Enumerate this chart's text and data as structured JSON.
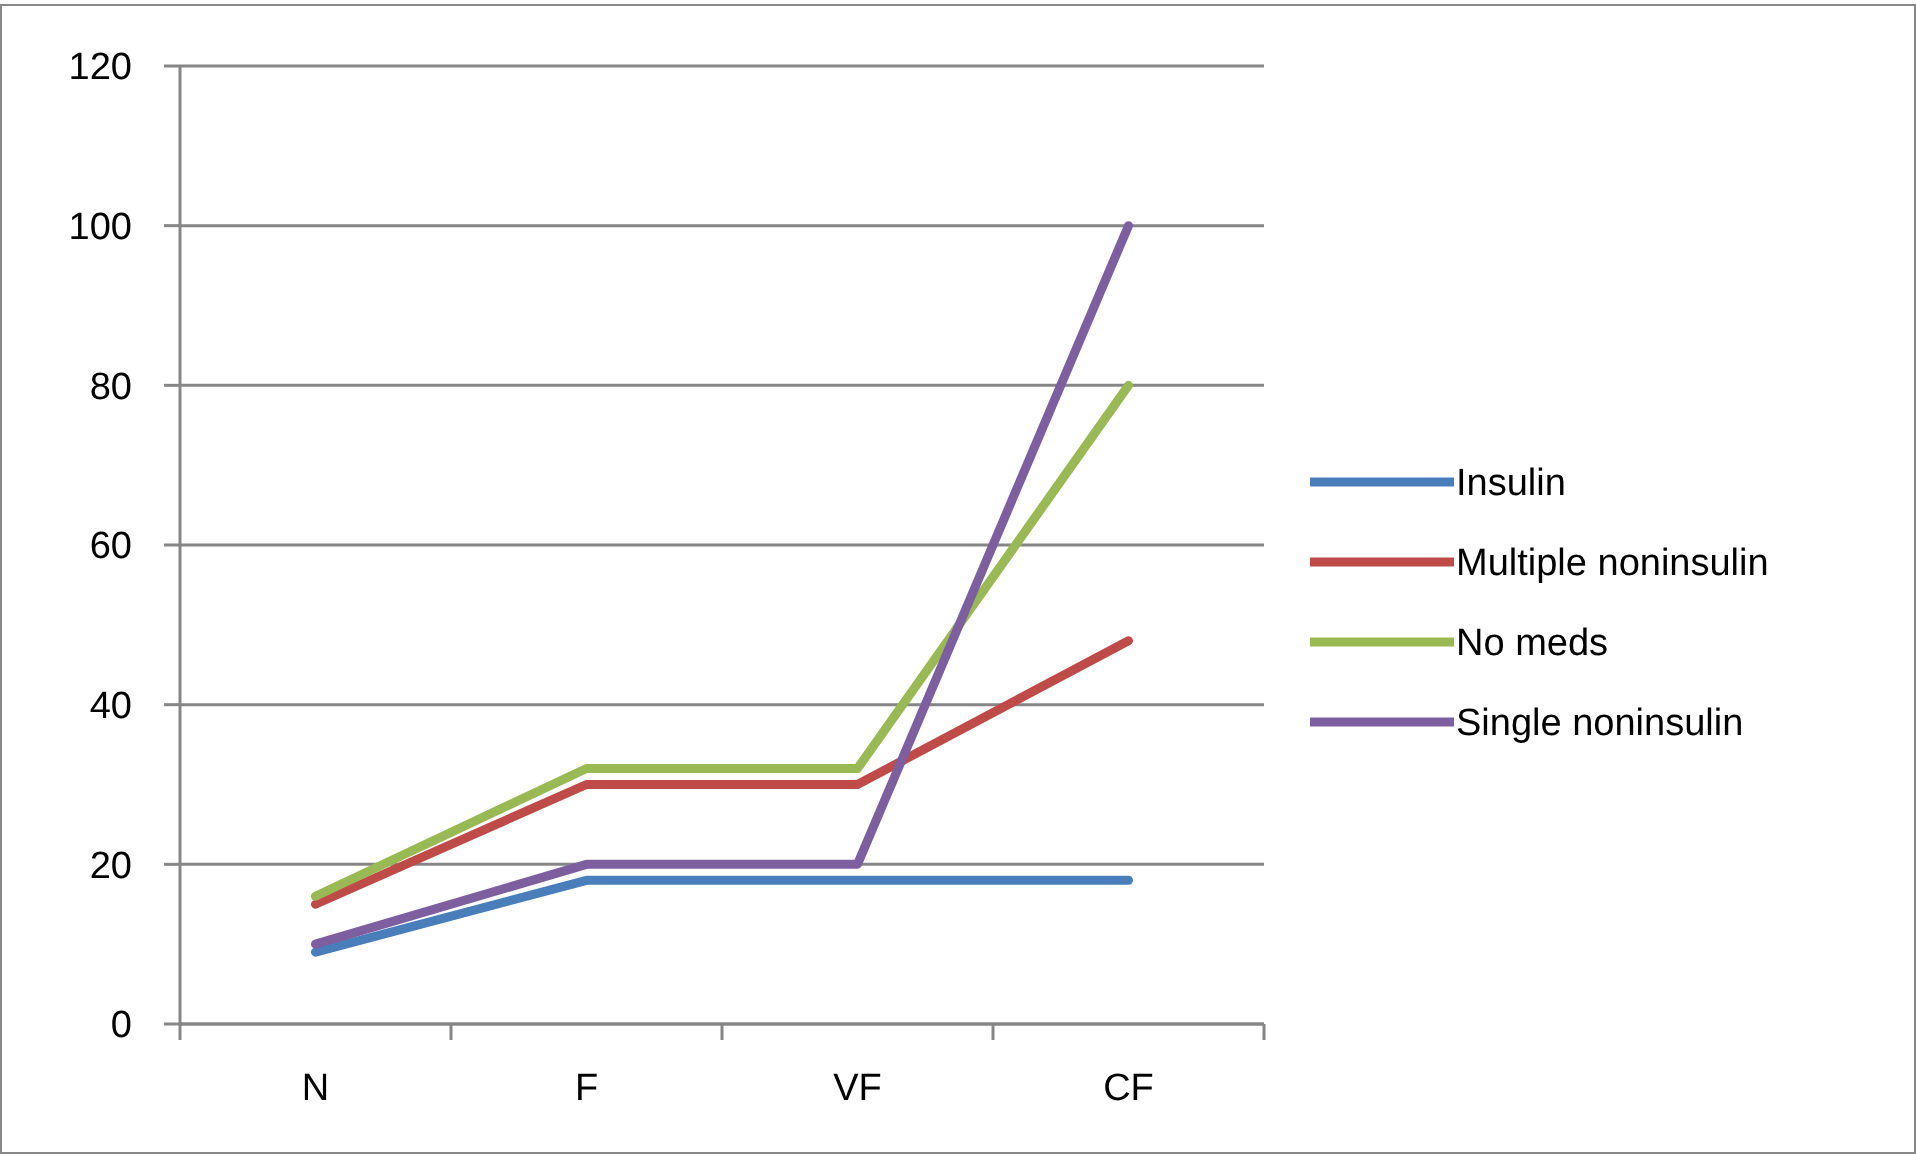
{
  "chart_data": {
    "type": "line",
    "categories": [
      "N",
      "F",
      "VF",
      "CF"
    ],
    "series": [
      {
        "name": "Insulin",
        "color": "#4a7ebb",
        "values": [
          9,
          18,
          18,
          18
        ]
      },
      {
        "name": "Multiple noninsulin",
        "color": "#be4b48",
        "values": [
          15,
          30,
          30,
          48
        ]
      },
      {
        "name": "No meds",
        "color": "#98b954",
        "values": [
          16,
          32,
          32,
          80
        ]
      },
      {
        "name": "Single noninsulin",
        "color": "#7d5fa0",
        "values": [
          10,
          20,
          20,
          100
        ]
      }
    ],
    "ylim": [
      0,
      120
    ],
    "yticks": [
      0,
      20,
      40,
      60,
      80,
      100,
      120
    ],
    "grid": "y",
    "legend": "right",
    "marker": "none",
    "line_style": "solid"
  }
}
